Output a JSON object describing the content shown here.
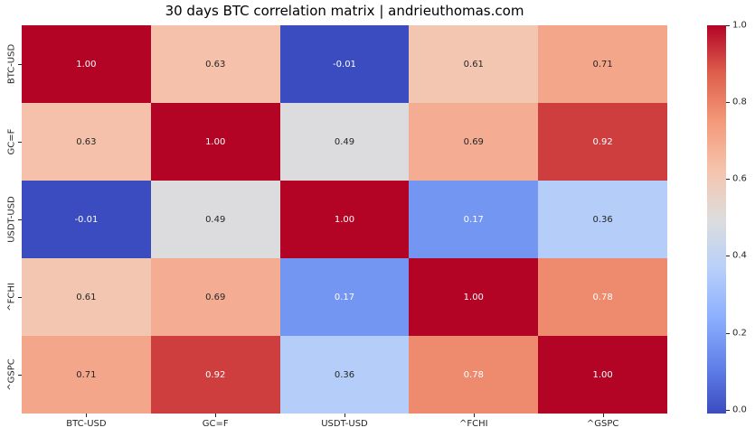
{
  "title": "30 days BTC correlation matrix | andrieuthomas.com",
  "chart_data": {
    "type": "heatmap",
    "title": "30 days BTC correlation matrix | andrieuthomas.com",
    "x_categories": [
      "BTC-USD",
      "GC=F",
      "USDT-USD",
      "^FCHI",
      "^GSPC"
    ],
    "y_categories": [
      "BTC-USD",
      "GC=F",
      "USDT-USD",
      "^FCHI",
      "^GSPC"
    ],
    "matrix": [
      [
        1.0,
        0.63,
        -0.01,
        0.61,
        0.71
      ],
      [
        0.63,
        1.0,
        0.49,
        0.69,
        0.92
      ],
      [
        -0.01,
        0.49,
        1.0,
        0.17,
        0.36
      ],
      [
        0.61,
        0.69,
        0.17,
        1.0,
        0.78
      ],
      [
        0.71,
        0.92,
        0.36,
        0.78,
        1.0
      ]
    ],
    "vmin": -0.01,
    "vmax": 1.0,
    "colormap": "coolwarm",
    "annotation_decimals": 2,
    "colorbar_ticks": [
      1.0,
      0.8,
      0.6,
      0.4,
      0.2,
      0.0
    ],
    "colorbar_tick_decimals": 1,
    "legend_position": "right-colorbar",
    "grid": false
  },
  "colors": {
    "background": "#ffffff",
    "title_text": "#000000",
    "axis_text": "#262626",
    "tick_mark": "#262626",
    "annotation_dark": "#262626",
    "annotation_light": "#ffffff",
    "cmap_stops": [
      "#3b4cc0",
      "#6282ea",
      "#8db0fe",
      "#b8d0f9",
      "#dddddd",
      "#f5c4ad",
      "#f49a7b",
      "#de604d",
      "#b40426"
    ]
  }
}
